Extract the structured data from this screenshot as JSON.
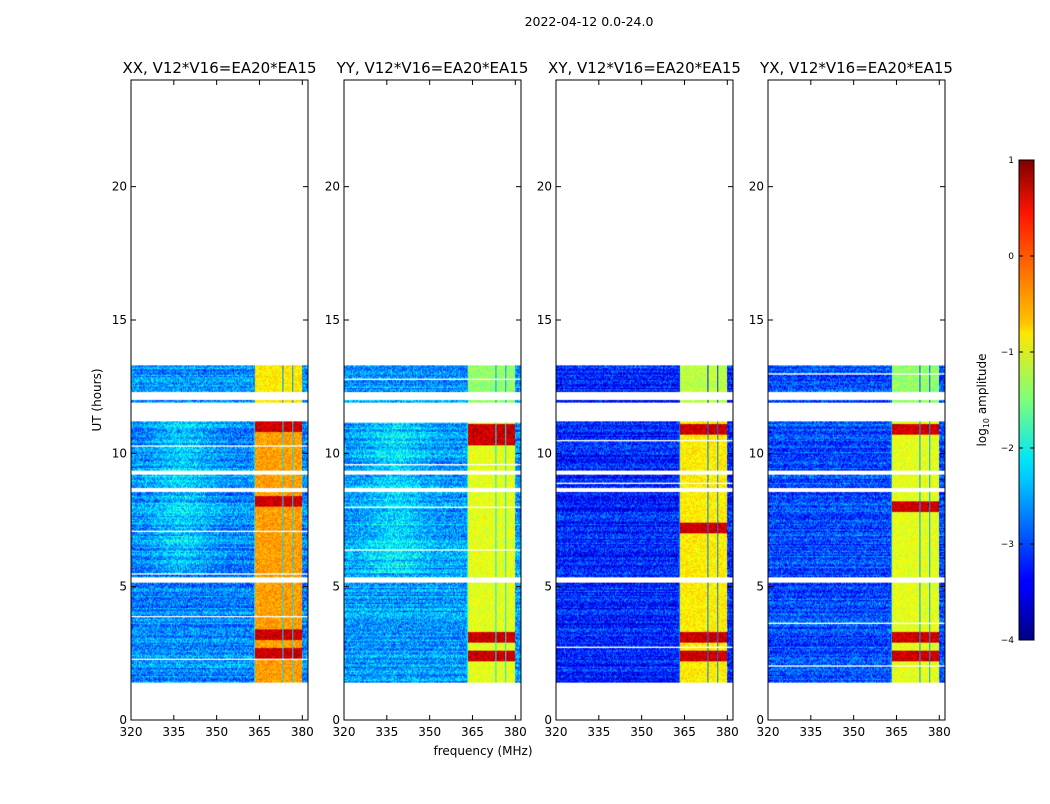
{
  "figure": {
    "suptitle": "2022-04-12 0.0-24.0",
    "xlabel": "frequency (MHz)",
    "ylabel": "UT (hours)"
  },
  "colorbar": {
    "label_prefix": "log",
    "label_subscript": "10",
    "label_suffix": " amplitude",
    "ticks": [
      1,
      0,
      -1,
      -2,
      -3,
      -4
    ],
    "tick_labels": [
      "1",
      "0",
      "−1",
      "−2",
      "−3",
      "−4"
    ],
    "range": [
      -4,
      1
    ],
    "colormap": "jet"
  },
  "chart_data": {
    "type": "heatmap",
    "xlim": [
      320,
      382
    ],
    "ylim": [
      0,
      24
    ],
    "x_ticks": [
      320,
      335,
      350,
      365,
      380
    ],
    "x_tick_labels": [
      "320",
      "335",
      "350",
      "365",
      "380"
    ],
    "y_ticks": [
      0,
      5,
      10,
      15,
      20
    ],
    "y_tick_labels": [
      "0",
      "5",
      "10",
      "15",
      "20"
    ],
    "panels": [
      {
        "title": "XX, V12*V16=EA20*EA15",
        "base_level": -2.7,
        "band_level": -0.4,
        "hot_levels": [
          3.2,
          2.5,
          8.2,
          11.0
        ]
      },
      {
        "title": "YY, V12*V16=EA20*EA15",
        "base_level": -2.6,
        "band_level": -1.0,
        "hot_levels": [
          3.1,
          2.4,
          10.9,
          10.5
        ]
      },
      {
        "title": "XY, V12*V16=EA20*EA15",
        "base_level": -3.2,
        "band_level": -0.8,
        "hot_levels": [
          3.1,
          2.4,
          10.9,
          7.2
        ]
      },
      {
        "title": "YX, V12*V16=EA20*EA15",
        "base_level": -3.0,
        "band_level": -1.0,
        "hot_levels": [
          3.1,
          2.4,
          10.9,
          8.0
        ]
      }
    ],
    "band_freq_range": [
      363,
      380
    ],
    "data_time_range": [
      1.4,
      13.3
    ],
    "gaps_hours": [
      [
        11.2,
        11.9
      ],
      [
        12.0,
        12.3
      ],
      [
        5.15,
        5.35
      ],
      [
        9.2,
        9.35
      ],
      [
        8.55,
        8.7
      ]
    ]
  }
}
